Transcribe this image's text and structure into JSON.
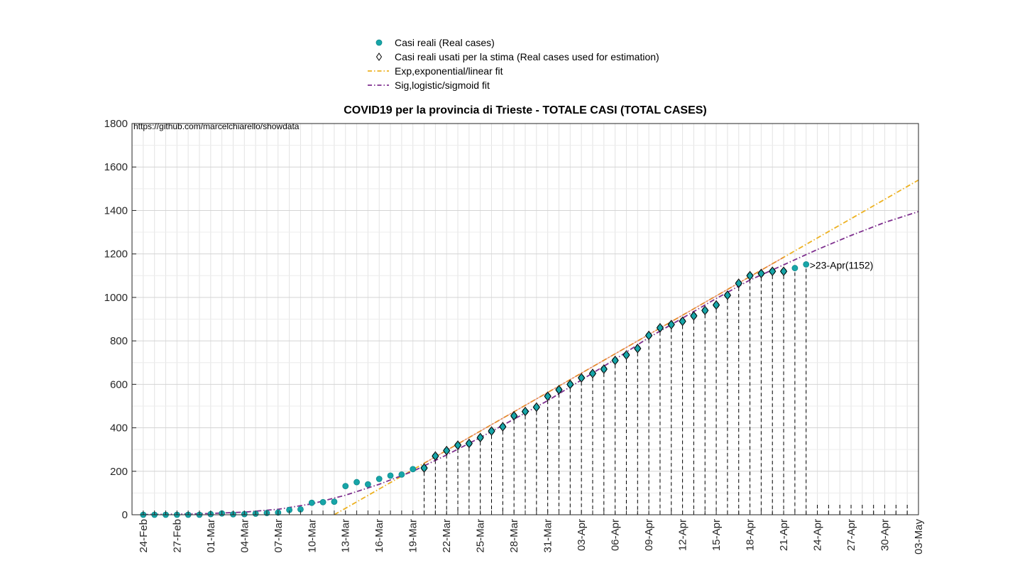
{
  "chart_data": {
    "type": "scatter",
    "title": "COVID19 per la provincia di Trieste - TOTALE CASI (TOTAL CASES)",
    "watermark": "https://github.com/marcelchiarello/showdata",
    "xlabel": "",
    "ylabel": "",
    "ylim": [
      0,
      1800
    ],
    "yticks": [
      "0",
      "200",
      "400",
      "600",
      "800",
      "1000",
      "1200",
      "1400",
      "1600",
      "1800"
    ],
    "grid": true,
    "legend_position": "top",
    "x_start": "24-Feb",
    "x_end": "03-May",
    "xtick_labels": [
      "24-Feb",
      "27-Feb",
      "01-Mar",
      "04-Mar",
      "07-Mar",
      "10-Mar",
      "13-Mar",
      "16-Mar",
      "19-Mar",
      "22-Mar",
      "25-Mar",
      "28-Mar",
      "31-Mar",
      "03-Apr",
      "06-Apr",
      "09-Apr",
      "12-Apr",
      "15-Apr",
      "18-Apr",
      "21-Apr",
      "24-Apr",
      "27-Apr",
      "30-Apr",
      "03-May"
    ],
    "annotation": ">23-Apr(1152)",
    "series": [
      {
        "name": "Casi reali (Real cases)",
        "kind": "markers",
        "color": "#17a5a8",
        "x": [
          "24-Feb",
          "25-Feb",
          "26-Feb",
          "27-Feb",
          "28-Feb",
          "29-Feb",
          "01-Mar",
          "02-Mar",
          "03-Mar",
          "04-Mar",
          "05-Mar",
          "06-Mar",
          "07-Mar",
          "08-Mar",
          "09-Mar",
          "10-Mar",
          "11-Mar",
          "12-Mar",
          "13-Mar",
          "14-Mar",
          "15-Mar",
          "16-Mar",
          "17-Mar",
          "18-Mar",
          "19-Mar",
          "20-Mar",
          "21-Mar",
          "22-Mar",
          "23-Mar",
          "24-Mar",
          "25-Mar",
          "26-Mar",
          "27-Mar",
          "28-Mar",
          "29-Mar",
          "30-Mar",
          "31-Mar",
          "01-Apr",
          "02-Apr",
          "03-Apr",
          "04-Apr",
          "05-Apr",
          "06-Apr",
          "07-Apr",
          "08-Apr",
          "09-Apr",
          "10-Apr",
          "11-Apr",
          "12-Apr",
          "13-Apr",
          "14-Apr",
          "15-Apr",
          "16-Apr",
          "17-Apr",
          "18-Apr",
          "19-Apr",
          "20-Apr",
          "21-Apr",
          "22-Apr",
          "23-Apr"
        ],
        "y": [
          0,
          0,
          0,
          0,
          0,
          0,
          3,
          6,
          2,
          3,
          5,
          8,
          10,
          22,
          25,
          55,
          58,
          60,
          132,
          150,
          140,
          165,
          180,
          185,
          210,
          215,
          270,
          295,
          320,
          328,
          355,
          385,
          405,
          455,
          475,
          495,
          545,
          575,
          600,
          630,
          650,
          670,
          710,
          735,
          765,
          825,
          860,
          875,
          890,
          915,
          940,
          965,
          1010,
          1065,
          1100,
          1110,
          1120,
          1120,
          1135,
          1152
        ]
      },
      {
        "name": "Casi reali usati per la stima (Real cases used for estimation)",
        "kind": "diamonds",
        "color": "#000000",
        "x": [
          "20-Mar",
          "21-Mar",
          "22-Mar",
          "23-Mar",
          "24-Mar",
          "25-Mar",
          "26-Mar",
          "27-Mar",
          "28-Mar",
          "29-Mar",
          "30-Mar",
          "31-Mar",
          "01-Apr",
          "02-Apr",
          "03-Apr",
          "04-Apr",
          "05-Apr",
          "06-Apr",
          "07-Apr",
          "08-Apr",
          "09-Apr",
          "10-Apr",
          "11-Apr",
          "12-Apr",
          "13-Apr",
          "14-Apr",
          "15-Apr",
          "16-Apr",
          "17-Apr",
          "18-Apr",
          "19-Apr",
          "20-Apr",
          "21-Apr"
        ],
        "y": [
          215,
          270,
          295,
          320,
          328,
          355,
          385,
          405,
          455,
          475,
          495,
          545,
          575,
          600,
          630,
          650,
          670,
          710,
          735,
          765,
          825,
          860,
          875,
          890,
          915,
          940,
          965,
          1010,
          1065,
          1100,
          1110,
          1120,
          1120
        ]
      },
      {
        "name": "Exp,exponential/linear fit",
        "kind": "line",
        "color": "#edb120",
        "x": [
          "12-Mar",
          "03-May"
        ],
        "y": [
          0,
          1540
        ]
      },
      {
        "name": "Sig,logistic/sigmoid fit",
        "kind": "line",
        "color": "#7e2f8e",
        "x": [
          "24-Feb",
          "27-Feb",
          "01-Mar",
          "04-Mar",
          "07-Mar",
          "10-Mar",
          "13-Mar",
          "16-Mar",
          "19-Mar",
          "22-Mar",
          "25-Mar",
          "28-Mar",
          "31-Mar",
          "03-Apr",
          "06-Apr",
          "09-Apr",
          "12-Apr",
          "15-Apr",
          "18-Apr",
          "21-Apr",
          "24-Apr",
          "27-Apr",
          "30-Apr",
          "03-May"
        ],
        "y": [
          1,
          3,
          6,
          12,
          25,
          50,
          90,
          140,
          200,
          275,
          355,
          440,
          525,
          620,
          715,
          815,
          905,
          995,
          1080,
          1150,
          1220,
          1285,
          1345,
          1395
        ]
      }
    ]
  }
}
